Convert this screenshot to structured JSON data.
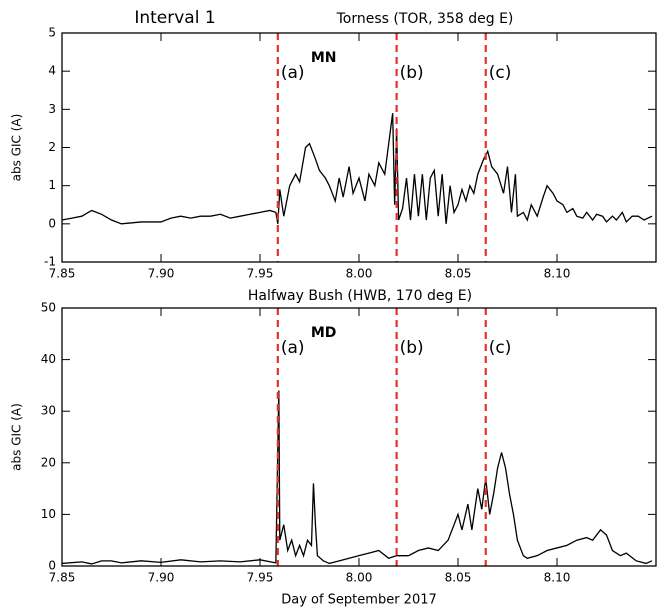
{
  "suptitle": "Interval 1",
  "chart_data": [
    {
      "type": "line",
      "title": "Torness (TOR, 358 deg E)",
      "ylabel": "abs GIC (A)",
      "annotation": "MN",
      "annotation_color": "#000000",
      "xlim": [
        7.85,
        8.15
      ],
      "xticks": [
        7.85,
        {
          "value": 7.9,
          "label": "7.90"
        },
        7.95,
        {
          "value": 8.0,
          "label": "8.00"
        },
        8.05,
        {
          "value": 8.1,
          "label": "8.10"
        }
      ],
      "ylim": [
        -1,
        5
      ],
      "yticks": [
        -1,
        0,
        1,
        2,
        3,
        4,
        5
      ],
      "markers": [
        {
          "x": 7.959,
          "label": "(a)"
        },
        {
          "x": 8.019,
          "label": "(b)"
        },
        {
          "x": 8.064,
          "label": "(c)"
        }
      ],
      "marker_color": "#e8302a",
      "x": [
        7.85,
        7.855,
        7.86,
        7.865,
        7.87,
        7.875,
        7.88,
        7.89,
        7.9,
        7.905,
        7.91,
        7.915,
        7.92,
        7.925,
        7.93,
        7.935,
        7.94,
        7.945,
        7.95,
        7.955,
        7.958,
        7.959,
        7.96,
        7.962,
        7.965,
        7.968,
        7.97,
        7.973,
        7.975,
        7.978,
        7.98,
        7.983,
        7.985,
        7.988,
        7.99,
        7.992,
        7.995,
        7.997,
        8.0,
        8.003,
        8.005,
        8.008,
        8.01,
        8.013,
        8.016,
        8.017,
        8.018,
        8.019,
        8.02,
        8.022,
        8.024,
        8.026,
        8.028,
        8.03,
        8.032,
        8.034,
        8.036,
        8.038,
        8.04,
        8.042,
        8.044,
        8.046,
        8.048,
        8.05,
        8.052,
        8.054,
        8.056,
        8.058,
        8.06,
        8.063,
        8.065,
        8.067,
        8.07,
        8.073,
        8.075,
        8.077,
        8.079,
        8.08,
        8.083,
        8.085,
        8.087,
        8.09,
        8.093,
        8.095,
        8.098,
        8.1,
        8.103,
        8.105,
        8.108,
        8.11,
        8.113,
        8.115,
        8.118,
        8.12,
        8.123,
        8.125,
        8.128,
        8.13,
        8.133,
        8.135,
        8.138,
        8.141,
        8.144,
        8.148
      ],
      "series": [
        {
          "color": "#000000",
          "values": [
            0.1,
            0.15,
            0.2,
            0.35,
            0.25,
            0.1,
            0.0,
            0.05,
            0.05,
            0.15,
            0.2,
            0.15,
            0.2,
            0.2,
            0.25,
            0.15,
            0.2,
            0.25,
            0.3,
            0.35,
            0.3,
            0.0,
            0.9,
            0.2,
            1.0,
            1.3,
            1.1,
            2.0,
            2.1,
            1.7,
            1.4,
            1.2,
            1.0,
            0.6,
            1.2,
            0.7,
            1.5,
            0.8,
            1.2,
            0.6,
            1.3,
            1.0,
            1.6,
            1.3,
            2.5,
            2.9,
            0.5,
            2.5,
            0.1,
            0.4,
            1.2,
            0.1,
            1.3,
            0.2,
            1.3,
            0.1,
            1.2,
            1.4,
            0.2,
            1.3,
            0.0,
            1.0,
            0.3,
            0.5,
            0.9,
            0.6,
            1.0,
            0.8,
            1.3,
            1.7,
            1.9,
            1.5,
            1.3,
            0.8,
            1.5,
            0.3,
            1.3,
            0.2,
            0.3,
            0.1,
            0.5,
            0.2,
            0.7,
            1.0,
            0.8,
            0.6,
            0.5,
            0.3,
            0.4,
            0.2,
            0.15,
            0.3,
            0.1,
            0.25,
            0.2,
            0.05,
            0.2,
            0.1,
            0.3,
            0.05,
            0.2,
            0.2,
            0.1,
            0.2
          ]
        }
      ]
    },
    {
      "type": "line",
      "title": "Halfway Bush (HWB, 170 deg E)",
      "ylabel": "abs GIC (A)",
      "xlabel": "Day of September 2017",
      "annotation": "MD",
      "annotation_color": "#7b7bf0",
      "xlim": [
        7.85,
        8.15
      ],
      "xticks": [
        7.85,
        {
          "value": 7.9,
          "label": "7.90"
        },
        7.95,
        {
          "value": 8.0,
          "label": "8.00"
        },
        8.05,
        {
          "value": 8.1,
          "label": "8.10"
        }
      ],
      "ylim": [
        0,
        50
      ],
      "yticks": [
        0,
        10,
        20,
        30,
        40,
        50
      ],
      "markers": [
        {
          "x": 7.959,
          "label": "(a)"
        },
        {
          "x": 8.019,
          "label": "(b)"
        },
        {
          "x": 8.064,
          "label": "(c)"
        }
      ],
      "marker_color": "#e8302a",
      "x": [
        7.85,
        7.86,
        7.865,
        7.87,
        7.875,
        7.88,
        7.89,
        7.9,
        7.91,
        7.92,
        7.93,
        7.94,
        7.95,
        7.958,
        7.9595,
        7.96,
        7.962,
        7.964,
        7.966,
        7.968,
        7.97,
        7.972,
        7.974,
        7.976,
        7.977,
        7.978,
        7.979,
        7.982,
        7.985,
        7.99,
        7.995,
        8.0,
        8.005,
        8.01,
        8.015,
        8.019,
        8.025,
        8.03,
        8.035,
        8.04,
        8.045,
        8.05,
        8.052,
        8.055,
        8.057,
        8.06,
        8.062,
        8.064,
        8.066,
        8.068,
        8.07,
        8.072,
        8.074,
        8.076,
        8.078,
        8.08,
        8.083,
        8.085,
        8.09,
        8.095,
        8.1,
        8.105,
        8.11,
        8.115,
        8.118,
        8.122,
        8.125,
        8.128,
        8.132,
        8.135,
        8.14,
        8.145,
        8.148
      ],
      "series": [
        {
          "color": "#000000",
          "values": [
            0.5,
            0.8,
            0.4,
            1,
            1,
            0.6,
            1,
            0.7,
            1.2,
            0.8,
            1,
            0.8,
            1.2,
            0.6,
            34,
            5,
            8,
            3,
            5,
            2,
            4,
            2,
            5,
            4,
            16,
            8,
            2,
            1,
            0.5,
            1,
            1.5,
            2,
            2.5,
            3,
            1.5,
            2,
            2,
            3,
            3.5,
            3,
            5,
            10,
            7,
            12,
            7,
            15,
            11,
            17,
            10,
            14,
            19,
            22,
            19,
            14,
            10,
            5,
            2,
            1.5,
            2,
            3,
            3.5,
            4,
            5,
            5.5,
            5,
            7,
            6,
            3,
            2,
            2.5,
            1,
            0.5,
            1
          ]
        }
      ]
    }
  ]
}
